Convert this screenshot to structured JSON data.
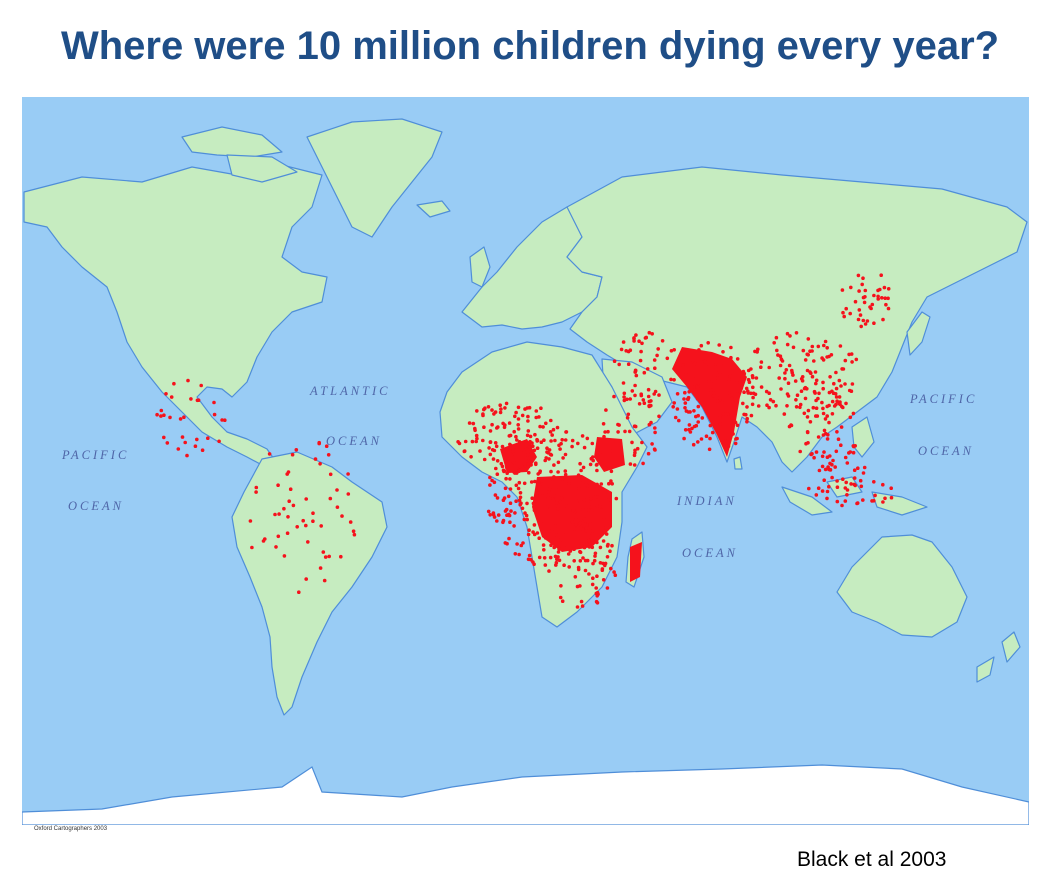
{
  "slide": {
    "title": "Where were 10 million children dying every year?",
    "source": "Black et al 2003"
  },
  "map": {
    "credit": "Oxford Cartographers 2003",
    "ocean_labels": {
      "atlantic_1": "ATLANTIC",
      "atlantic_2": "OCEAN",
      "pacific_w_1": "PACIFIC",
      "pacific_w_2": "OCEAN",
      "indian_1": "INDIAN",
      "indian_2": "OCEAN",
      "pacific_e_1": "PACIFIC",
      "pacific_e_2": "OCEAN"
    },
    "colors": {
      "ocean": "#99ccf5",
      "land": "#c6ecc0",
      "coast": "#4f8ed8",
      "antarctica": "#ffffff",
      "deaths": "#f5121c"
    },
    "legend": "none"
  }
}
